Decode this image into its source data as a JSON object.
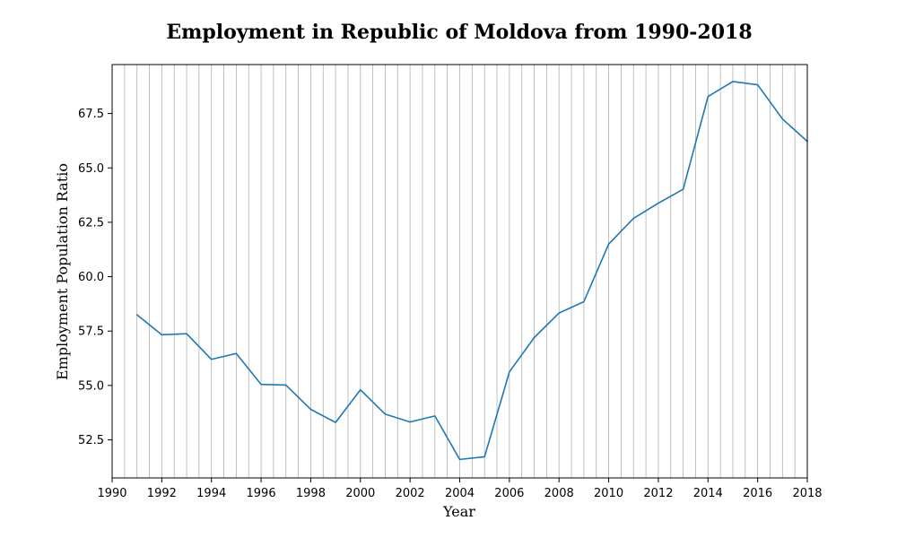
{
  "chart_data": {
    "type": "line",
    "title": "Employment in Republic of Moldova from 1990-2018",
    "xlabel": "Year",
    "ylabel": "Employment Population Ratio",
    "xlim": [
      1990,
      2018
    ],
    "ylim": [
      50.75,
      69.75
    ],
    "x_ticks": [
      1990,
      1992,
      1994,
      1996,
      1998,
      2000,
      2002,
      2004,
      2006,
      2008,
      2010,
      2012,
      2014,
      2016,
      2018
    ],
    "y_ticks": [
      52.5,
      55.0,
      57.5,
      60.0,
      62.5,
      65.0,
      67.5
    ],
    "y_tick_labels": [
      "52.5",
      "55.0",
      "57.5",
      "60.0",
      "62.5",
      "65.0",
      "67.5"
    ],
    "grid": "vertical-every-half-year",
    "grid_step": 0.5,
    "line_color": "#1f77b4",
    "series": [
      {
        "x": [
          1991,
          1992,
          1993,
          1994,
          1995,
          1996,
          1997,
          1998,
          1999,
          2000,
          2001,
          2002,
          2003,
          2004,
          2005,
          2006,
          2007,
          2008,
          2009,
          2010,
          2011,
          2012,
          2013,
          2014,
          2015,
          2016,
          2017,
          2018
        ],
        "values": [
          58.25,
          57.33,
          57.38,
          56.2,
          56.47,
          55.05,
          55.02,
          53.9,
          53.3,
          54.8,
          53.68,
          53.32,
          53.6,
          51.6,
          51.72,
          55.62,
          57.2,
          58.33,
          58.85,
          61.5,
          62.68,
          63.38,
          64.02,
          68.28,
          68.97,
          68.82,
          67.25,
          66.22
        ]
      }
    ]
  }
}
